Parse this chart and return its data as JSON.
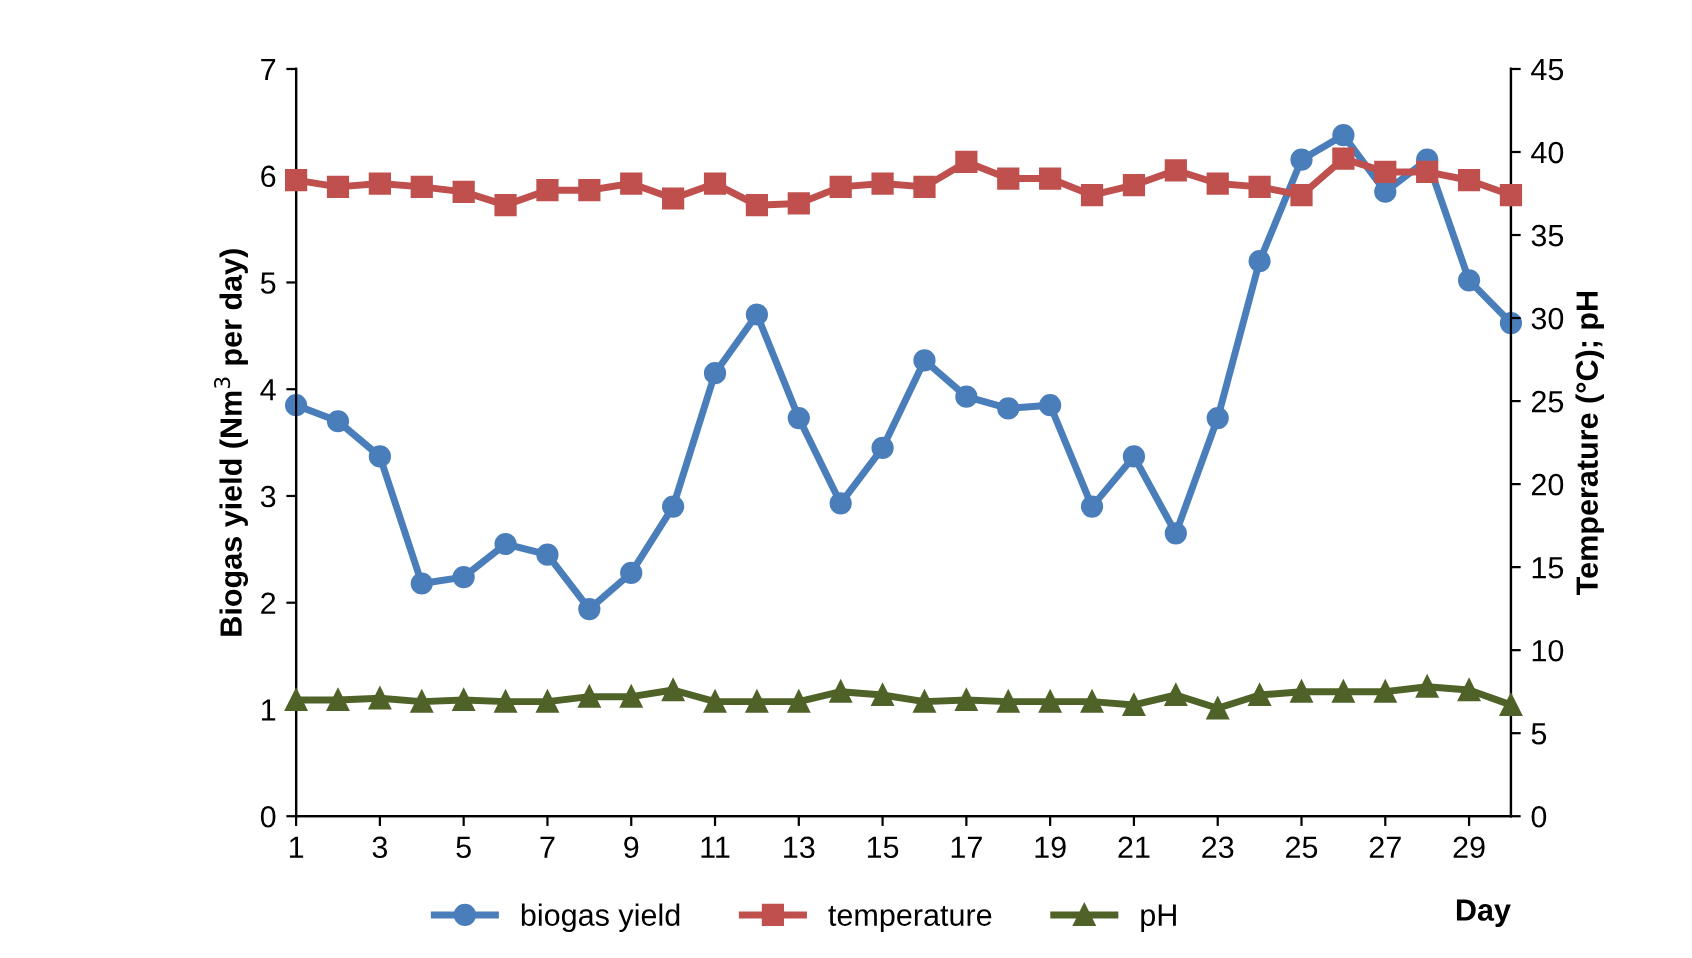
{
  "chart_data": {
    "type": "line",
    "xlabel": "Day",
    "ylabel": "Biogas yield (Nm$^{3}$ per day)",
    "y2label": "Temperature (°C); pH",
    "x": [
      1,
      2,
      3,
      4,
      5,
      6,
      7,
      8,
      9,
      10,
      11,
      12,
      13,
      14,
      15,
      16,
      17,
      18,
      19,
      20,
      21,
      22,
      23,
      24,
      25,
      26,
      27,
      28,
      29,
      30
    ],
    "xlim": [
      1,
      30
    ],
    "xticks": [
      1,
      3,
      5,
      7,
      9,
      11,
      13,
      15,
      17,
      19,
      21,
      23,
      25,
      27,
      29
    ],
    "ylim": [
      0,
      7
    ],
    "yticks": [
      0,
      1,
      2,
      3,
      4,
      5,
      6,
      7
    ],
    "y2lim": [
      0,
      45
    ],
    "y2ticks": [
      0,
      5,
      10,
      15,
      20,
      25,
      30,
      35,
      40,
      45
    ],
    "legend": "bottom",
    "grid": false,
    "series": [
      {
        "name": "biogas yield",
        "color": "#4a7ebb",
        "marker": "circle",
        "values": [
          3.85,
          3.7,
          3.37,
          2.18,
          2.24,
          2.55,
          2.45,
          1.94,
          2.28,
          2.9,
          4.15,
          4.7,
          3.73,
          2.93,
          3.45,
          4.27,
          3.93,
          3.82,
          3.85,
          2.9,
          3.37,
          2.65,
          3.73,
          5.2,
          6.15,
          6.38,
          5.85,
          6.15,
          5.02,
          4.62
        ]
      },
      {
        "name": "temperature",
        "color": "#c0504d",
        "marker": "square",
        "axis": "y2",
        "values": [
          38.3,
          37.9,
          38.1,
          37.9,
          37.6,
          36.8,
          37.7,
          37.7,
          38.1,
          37.2,
          38.1,
          36.8,
          36.9,
          37.9,
          38.1,
          37.9,
          39.4,
          38.4,
          38.4,
          37.4,
          38.0,
          38.9,
          38.1,
          37.9,
          37.4,
          39.6,
          38.8,
          38.8,
          38.3,
          37.4
        ]
      },
      {
        "name": "pH",
        "color": "#4f6228",
        "marker": "triangle",
        "axis": "y2",
        "values": [
          7.0,
          7.0,
          7.1,
          6.9,
          7.0,
          6.9,
          6.9,
          7.2,
          7.2,
          7.6,
          6.9,
          6.9,
          6.9,
          7.5,
          7.3,
          6.9,
          7.0,
          6.9,
          6.9,
          6.9,
          6.7,
          7.3,
          6.5,
          7.3,
          7.5,
          7.5,
          7.5,
          7.8,
          7.6,
          6.7
        ]
      }
    ]
  }
}
